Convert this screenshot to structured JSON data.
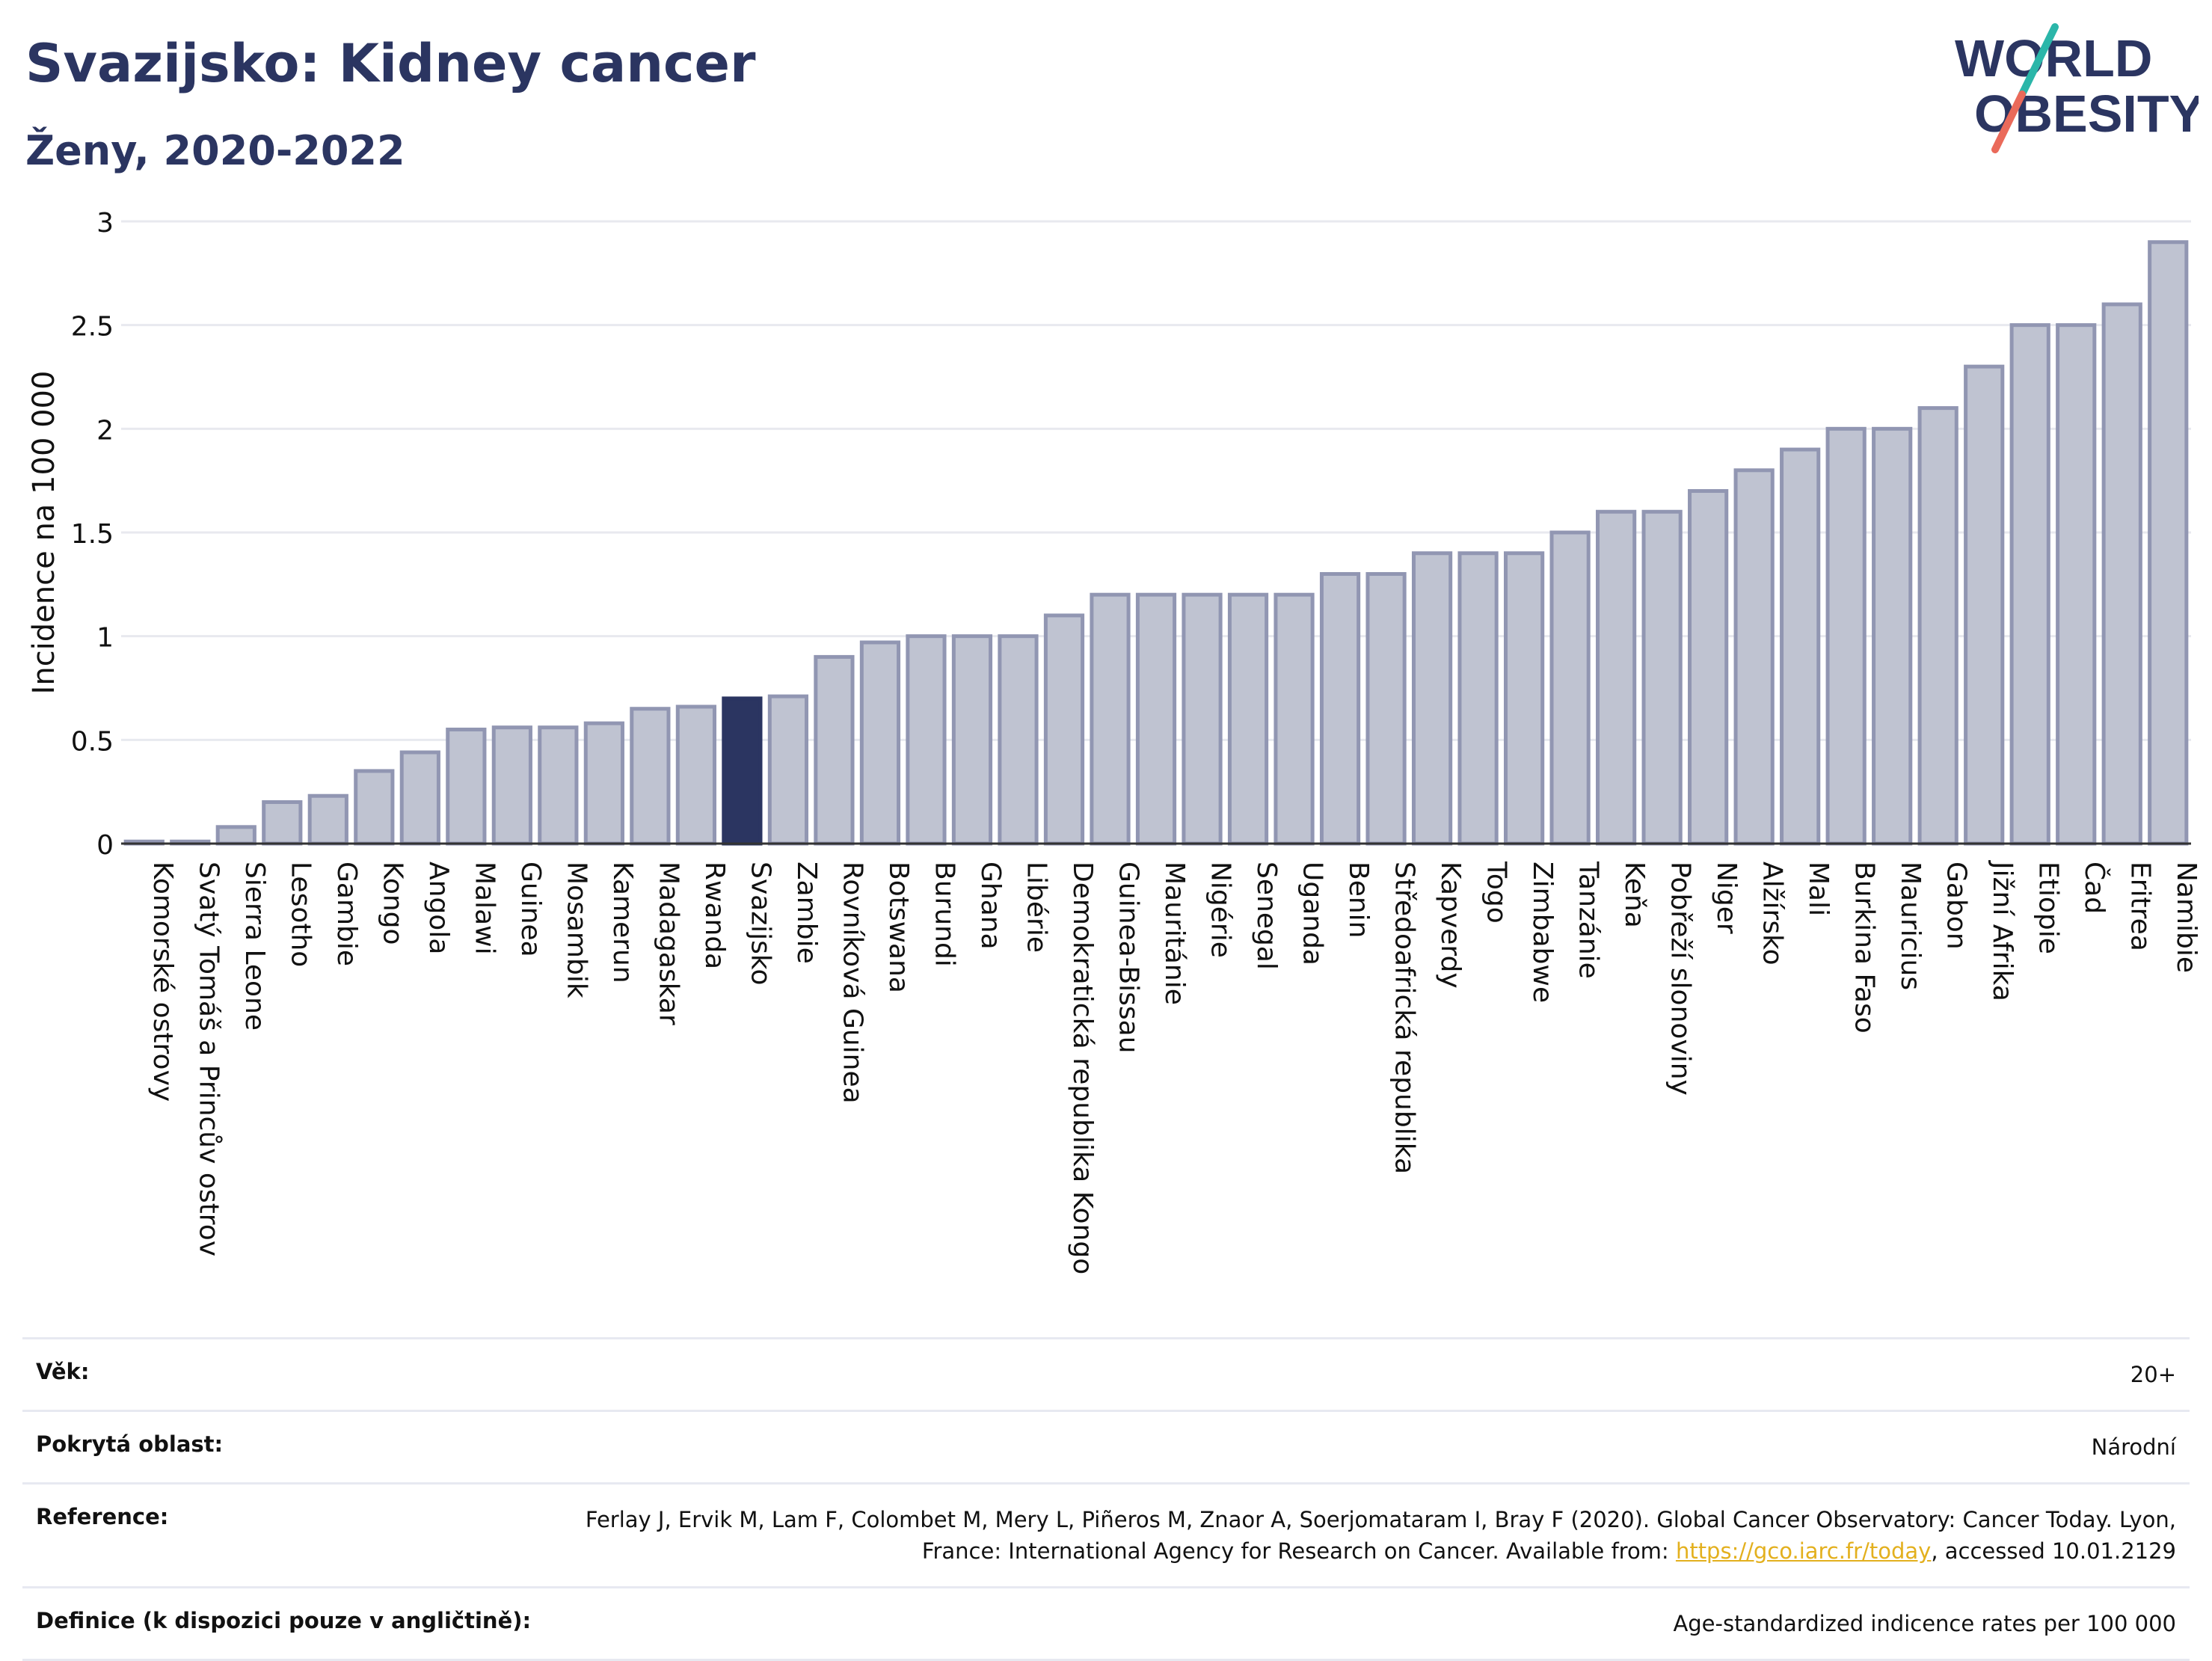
{
  "header": {
    "title": "Svazijsko: Kidney cancer",
    "subtitle": "Ženy, 2020-2022",
    "logo_line1": "WORLD",
    "logo_line2": "OBESITY"
  },
  "chart_data": {
    "type": "bar",
    "ylabel": "Incidence na 100 000",
    "ylim": [
      0,
      3
    ],
    "yticks": [
      "0",
      "0.5",
      "1",
      "1.5",
      "2",
      "2.5",
      "3"
    ],
    "grid": true,
    "highlight": "Svazijsko",
    "colors": {
      "bar_fill": "#bfc3d1",
      "bar_stroke": "#9196b2",
      "highlight_fill": "#2b3561",
      "grid": "#e8e9ef"
    },
    "categories": [
      "Komorské ostrovy",
      "Svatý Tomáš a Princův ostrov",
      "Sierra Leone",
      "Lesotho",
      "Gambie",
      "Kongo",
      "Angola",
      "Malawi",
      "Guinea",
      "Mosambik",
      "Kamerun",
      "Madagaskar",
      "Rwanda",
      "Svazijsko",
      "Zambie",
      "Rovníková Guinea",
      "Botswana",
      "Burundi",
      "Ghana",
      "Libérie",
      "Demokratická republika Kongo",
      "Guinea-Bissau",
      "Mauritánie",
      "Nigérie",
      "Senegal",
      "Uganda",
      "Benin",
      "Středoafrická republika",
      "Kapverdy",
      "Togo",
      "Zimbabwe",
      "Tanzánie",
      "Keňa",
      "Pobřeží slonoviny",
      "Niger",
      "Alžírsko",
      "Mali",
      "Burkina Faso",
      "Mauricius",
      "Gabon",
      "Jižní Afrika",
      "Etiopie",
      "Čad",
      "Eritrea",
      "Namibie"
    ],
    "values": [
      0.01,
      0.01,
      0.08,
      0.2,
      0.23,
      0.35,
      0.44,
      0.55,
      0.56,
      0.56,
      0.58,
      0.65,
      0.66,
      0.7,
      0.71,
      0.9,
      0.97,
      1.0,
      1.0,
      1.0,
      1.1,
      1.2,
      1.2,
      1.2,
      1.2,
      1.2,
      1.3,
      1.3,
      1.4,
      1.4,
      1.4,
      1.5,
      1.6,
      1.6,
      1.7,
      1.8,
      1.9,
      2.0,
      2.0,
      2.1,
      2.3,
      2.5,
      2.5,
      2.6,
      2.9
    ]
  },
  "info": {
    "age_label": "Věk:",
    "age_value": "20+",
    "area_label": "Pokrytá oblast:",
    "area_value": "Národní",
    "reference_label": "Reference:",
    "reference_text": "Ferlay J, Ervik M, Lam F, Colombet M, Mery L, Piñeros M, Znaor A, Soerjomataram I, Bray F (2020). Global Cancer Observatory: Cancer Today. Lyon, France: International Agency for Research on Cancer. Available from: ",
    "reference_link": "https://gco.iarc.fr/today",
    "reference_suffix": ", accessed 10.01.2129",
    "definition_label": "Definice (k dispozici pouze v angličtině):",
    "definition_value": "Age-standardized indicence rates per 100 000"
  }
}
